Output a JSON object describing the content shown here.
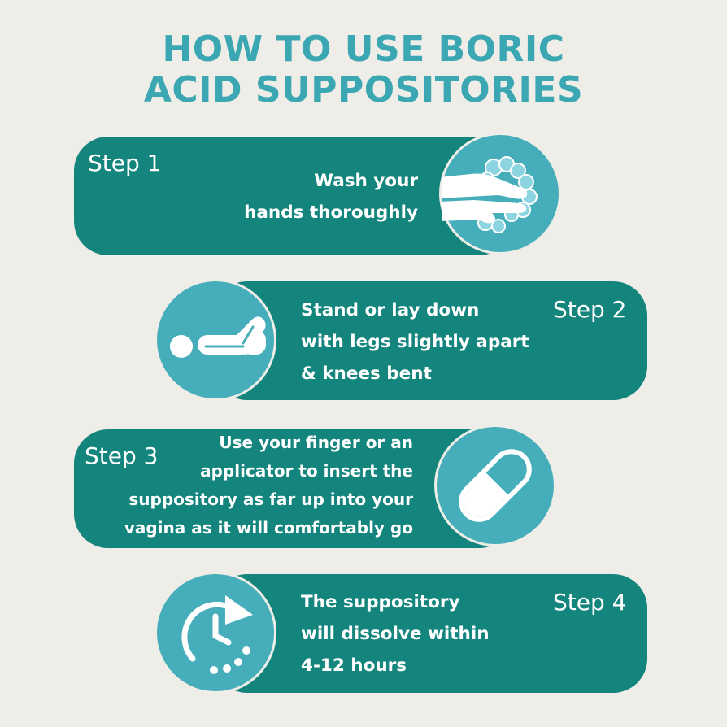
{
  "title": {
    "line1": "HOW TO USE BORIC",
    "line2": "ACID SUPPOSITORIES"
  },
  "steps": [
    {
      "label": "Step 1",
      "lines": [
        "Wash your",
        "hands thoroughly"
      ],
      "icon": "hand-washing-icon"
    },
    {
      "label": "Step 2",
      "lines": [
        "Stand or lay down",
        "with legs slightly apart",
        "& knees bent"
      ],
      "icon": "lying-person-icon"
    },
    {
      "label": "Step 3",
      "lines": [
        "Use your finger or an",
        "applicator to insert the",
        "suppository as far up into your",
        "vagina as it will comfortably go"
      ],
      "icon": "capsule-icon"
    },
    {
      "label": "Step 4",
      "lines": [
        "The suppository",
        "will dissolve within",
        "4-12 hours"
      ],
      "icon": "clock-timer-icon"
    }
  ],
  "colors": {
    "background": "#EFEDE8",
    "title": "#3AA7B2",
    "bar": "#13857D",
    "circle": "#45AEBA",
    "text": "#FFFFFF"
  }
}
